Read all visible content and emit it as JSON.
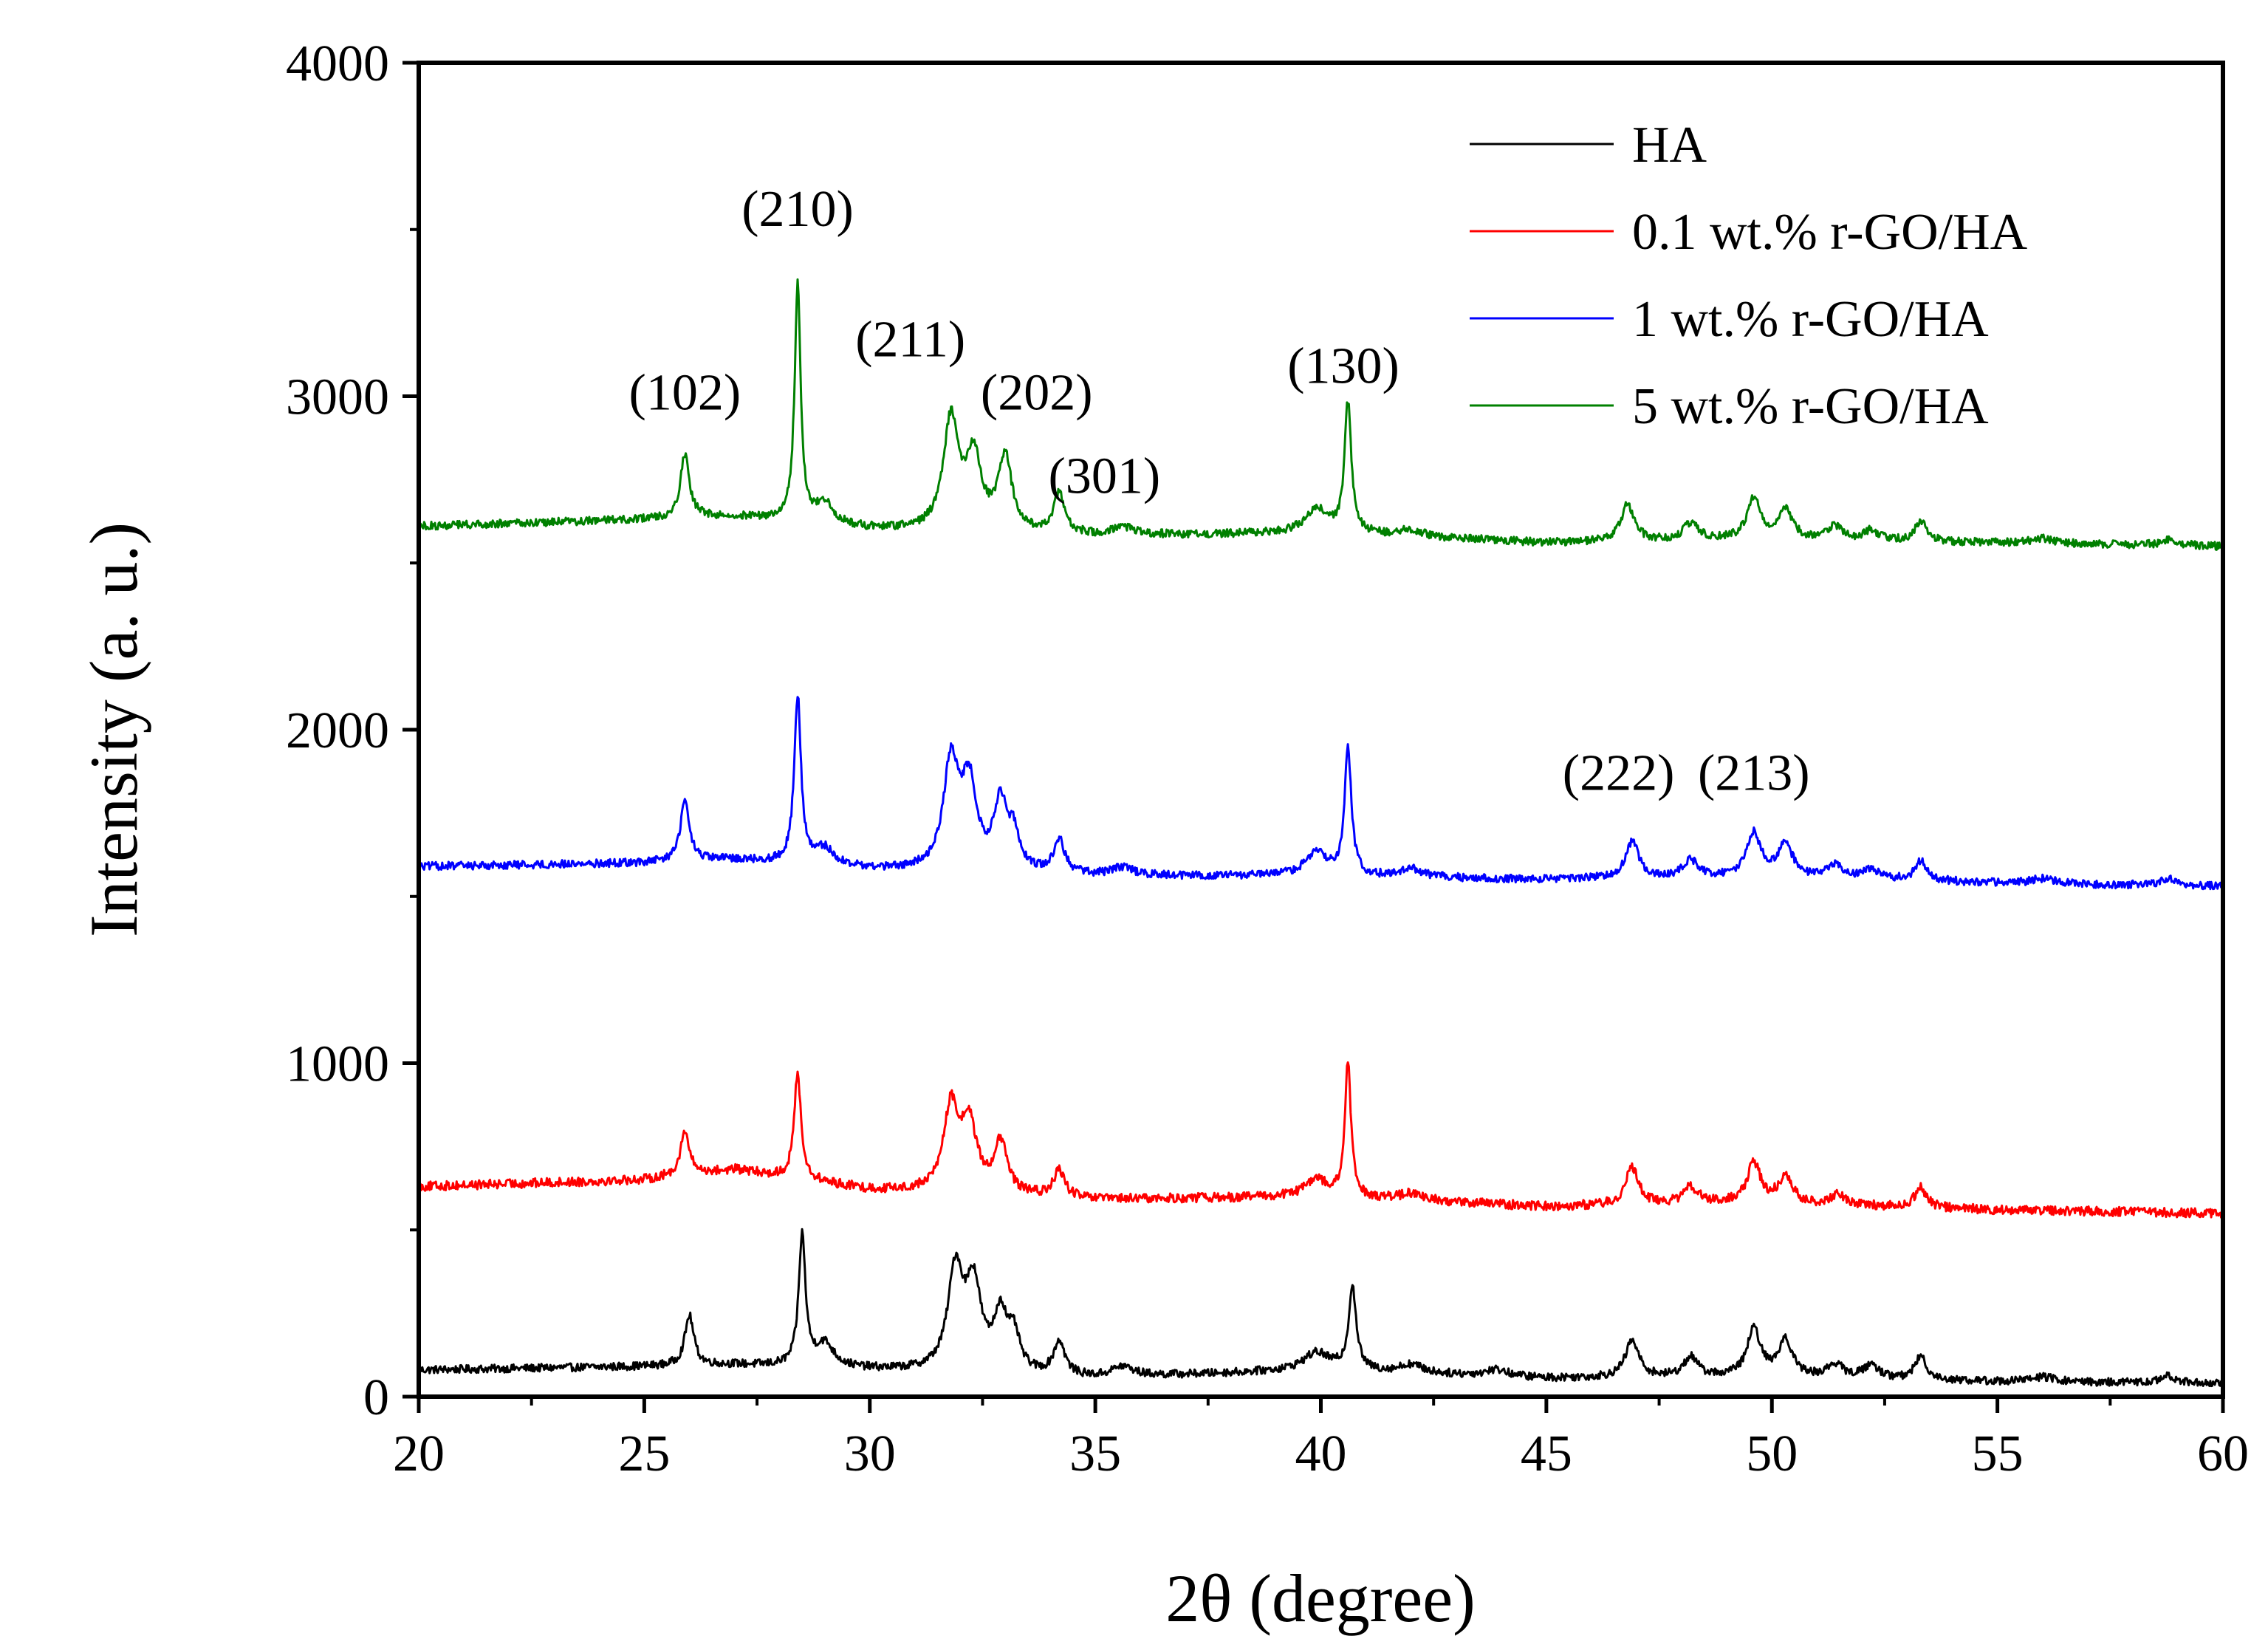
{
  "chart_data": {
    "type": "line",
    "title": "",
    "xlabel": "2θ (degree)",
    "ylabel": "Intensity (a. u.)",
    "xlim": [
      20,
      60
    ],
    "ylim": [
      0,
      4000
    ],
    "xticks": [
      20,
      25,
      30,
      35,
      40,
      45,
      50,
      55,
      60
    ],
    "yticks": [
      0,
      1000,
      2000,
      3000,
      4000
    ],
    "grid": false,
    "legend_position": "top-right",
    "series": [
      {
        "name": "HA",
        "color": "#000000",
        "baseline": [
          [
            20,
            80
          ],
          [
            25,
            90
          ],
          [
            27,
            95
          ],
          [
            30,
            80
          ],
          [
            35,
            55
          ],
          [
            40,
            80
          ],
          [
            45,
            55
          ],
          [
            50,
            60
          ],
          [
            55,
            45
          ],
          [
            60,
            40
          ]
        ],
        "peaks": [
          [
            26.0,
            150,
            0.12
          ],
          [
            28.5,
            390,
            0.09
          ],
          [
            29.0,
            70,
            0.25
          ],
          [
            31.9,
            300,
            0.2
          ],
          [
            32.3,
            250,
            0.2
          ],
          [
            32.9,
            170,
            0.18
          ],
          [
            33.2,
            100,
            0.15
          ],
          [
            34.2,
            100,
            0.15
          ],
          [
            35.6,
            30,
            0.3
          ],
          [
            39.9,
            50,
            0.35
          ],
          [
            40.7,
            250,
            0.1
          ],
          [
            42.0,
            25,
            0.3
          ],
          [
            43.9,
            20,
            0.3
          ],
          [
            46.9,
            110,
            0.18
          ],
          [
            48.2,
            60,
            0.18
          ],
          [
            49.6,
            140,
            0.18
          ],
          [
            50.3,
            110,
            0.18
          ],
          [
            51.4,
            40,
            0.2
          ],
          [
            52.2,
            40,
            0.2
          ],
          [
            53.3,
            70,
            0.15
          ],
          [
            56.0,
            15,
            0.3
          ],
          [
            58.8,
            20,
            0.2
          ]
        ],
        "noise": 12
      },
      {
        "name": "0.1 wt.% r-GO/HA",
        "color": "#ff0000",
        "baseline": [
          [
            20,
            630
          ],
          [
            25,
            650
          ],
          [
            27,
            680
          ],
          [
            30,
            620
          ],
          [
            35,
            590
          ],
          [
            40,
            600
          ],
          [
            45,
            570
          ],
          [
            50,
            580
          ],
          [
            55,
            560
          ],
          [
            60,
            550
          ]
        ],
        "peaks": [
          [
            25.9,
            130,
            0.12
          ],
          [
            28.4,
            320,
            0.09
          ],
          [
            31.8,
            250,
            0.2
          ],
          [
            32.2,
            200,
            0.2
          ],
          [
            32.9,
            150,
            0.18
          ],
          [
            34.2,
            80,
            0.15
          ],
          [
            39.9,
            50,
            0.3
          ],
          [
            40.6,
            400,
            0.08
          ],
          [
            42.0,
            20,
            0.3
          ],
          [
            46.9,
            110,
            0.18
          ],
          [
            48.2,
            50,
            0.2
          ],
          [
            49.6,
            120,
            0.18
          ],
          [
            50.3,
            80,
            0.18
          ],
          [
            51.5,
            30,
            0.2
          ],
          [
            53.3,
            60,
            0.15
          ]
        ],
        "noise": 14
      },
      {
        "name": "1 wt.% r-GO/HA",
        "color": "#0000ff",
        "baseline": [
          [
            20,
            1590
          ],
          [
            25,
            1600
          ],
          [
            27,
            1610
          ],
          [
            30,
            1580
          ],
          [
            35,
            1560
          ],
          [
            40,
            1560
          ],
          [
            45,
            1550
          ],
          [
            50,
            1560
          ],
          [
            55,
            1540
          ],
          [
            60,
            1530
          ]
        ],
        "peaks": [
          [
            25.9,
            180,
            0.12
          ],
          [
            28.4,
            500,
            0.09
          ],
          [
            29.0,
            50,
            0.25
          ],
          [
            31.8,
            320,
            0.2
          ],
          [
            32.2,
            250,
            0.2
          ],
          [
            32.9,
            200,
            0.18
          ],
          [
            33.2,
            100,
            0.15
          ],
          [
            34.2,
            100,
            0.15
          ],
          [
            35.6,
            25,
            0.3
          ],
          [
            39.9,
            70,
            0.3
          ],
          [
            40.6,
            380,
            0.09
          ],
          [
            42.0,
            25,
            0.3
          ],
          [
            46.9,
            110,
            0.18
          ],
          [
            48.2,
            50,
            0.2
          ],
          [
            49.6,
            130,
            0.18
          ],
          [
            50.3,
            100,
            0.18
          ],
          [
            51.4,
            40,
            0.2
          ],
          [
            52.2,
            30,
            0.2
          ],
          [
            53.3,
            60,
            0.15
          ],
          [
            56.0,
            15,
            0.3
          ],
          [
            58.8,
            20,
            0.2
          ]
        ],
        "noise": 12
      },
      {
        "name": "5 wt.% r-GO/HA",
        "color": "#008000",
        "baseline": [
          [
            20,
            2610
          ],
          [
            25,
            2630
          ],
          [
            27,
            2640
          ],
          [
            30,
            2600
          ],
          [
            35,
            2580
          ],
          [
            40,
            2590
          ],
          [
            45,
            2560
          ],
          [
            50,
            2570
          ],
          [
            55,
            2560
          ],
          [
            60,
            2550
          ]
        ],
        "peaks": [
          [
            25.9,
            190,
            0.12
          ],
          [
            28.4,
            710,
            0.08
          ],
          [
            29.0,
            60,
            0.25
          ],
          [
            31.8,
            330,
            0.2
          ],
          [
            32.3,
            220,
            0.2
          ],
          [
            33.0,
            220,
            0.18
          ],
          [
            34.2,
            120,
            0.15
          ],
          [
            35.6,
            25,
            0.3
          ],
          [
            39.9,
            70,
            0.3
          ],
          [
            40.6,
            390,
            0.09
          ],
          [
            42.0,
            20,
            0.3
          ],
          [
            46.8,
            110,
            0.18
          ],
          [
            48.2,
            50,
            0.2
          ],
          [
            49.6,
            120,
            0.18
          ],
          [
            50.3,
            90,
            0.18
          ],
          [
            51.4,
            40,
            0.2
          ],
          [
            52.2,
            30,
            0.2
          ],
          [
            53.3,
            60,
            0.15
          ],
          [
            56.0,
            15,
            0.3
          ],
          [
            58.8,
            20,
            0.2
          ]
        ],
        "noise": 12
      }
    ],
    "annotations": [
      {
        "text": "(210)",
        "x": 28.4,
        "y": 3510
      },
      {
        "text": "(102)",
        "x": 25.9,
        "y": 2960
      },
      {
        "text": "(211)",
        "x": 30.9,
        "y": 3120
      },
      {
        "text": "(202)",
        "x": 33.7,
        "y": 2960
      },
      {
        "text": "(301)",
        "x": 35.2,
        "y": 2710
      },
      {
        "text": "(130)",
        "x": 40.5,
        "y": 3040
      },
      {
        "text": "(222)",
        "x": 46.6,
        "y": 1820
      },
      {
        "text": "(213)",
        "x": 49.6,
        "y": 1820
      }
    ]
  }
}
